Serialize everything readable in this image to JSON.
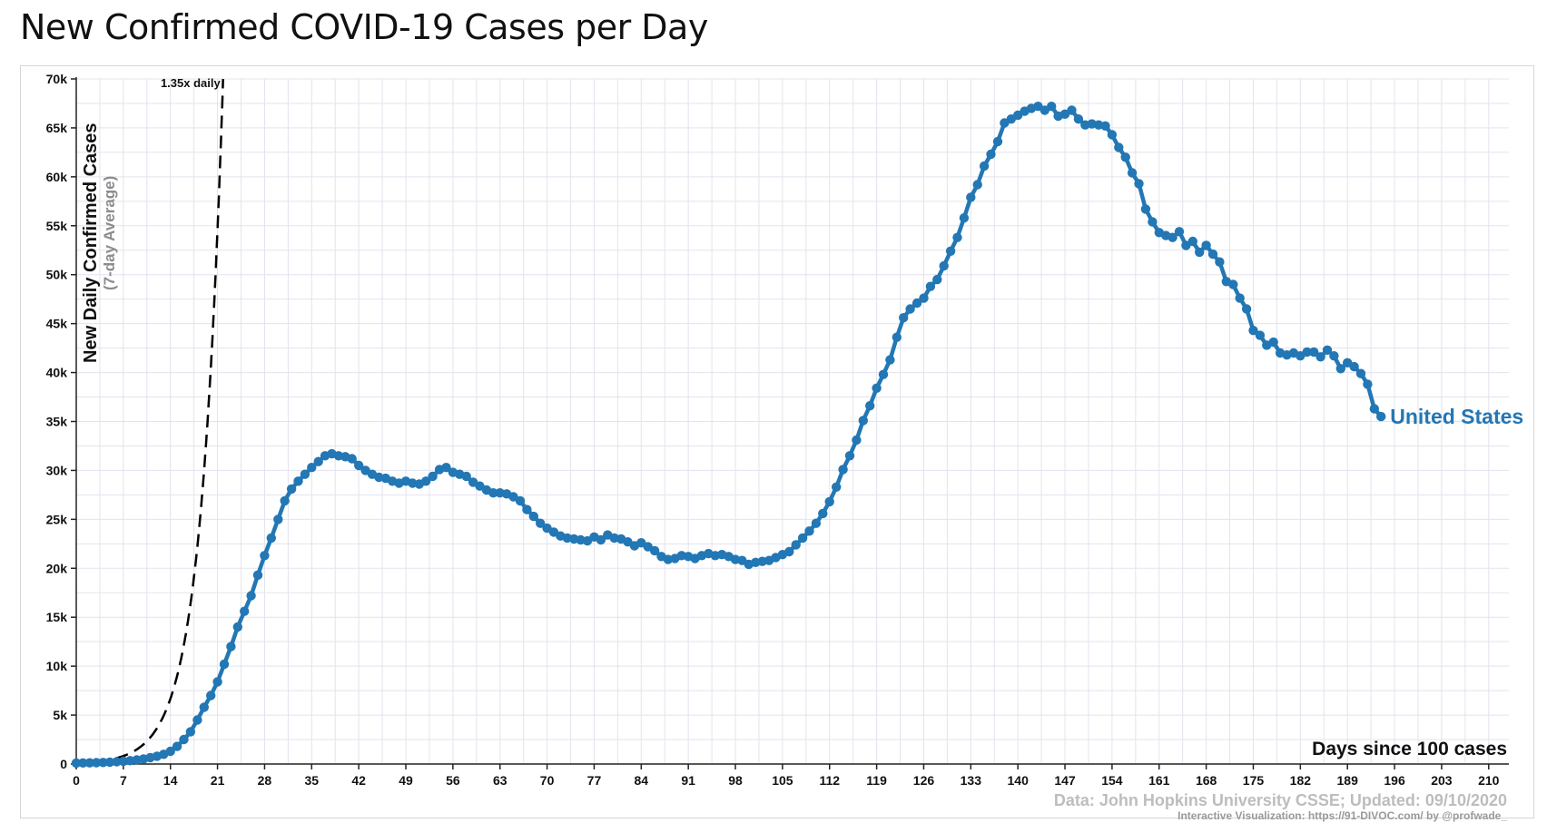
{
  "page": {
    "title": "New Confirmed COVID-19 Cases per Day"
  },
  "colors": {
    "series": "#2277b4",
    "grid": "#e3e3ee",
    "trend": "#000000",
    "credit": "#bdbdbd"
  },
  "chart_data": {
    "type": "line",
    "title": "New Confirmed COVID-19 Cases per Day",
    "xlabel": "Days since 100 cases",
    "ylabel": "New Daily Confirmed Cases",
    "ylabel_note": "(7-day Average)",
    "xlim": [
      0,
      213
    ],
    "ylim": [
      0,
      70000
    ],
    "x_ticks": [
      0,
      7,
      14,
      21,
      28,
      35,
      42,
      49,
      56,
      63,
      70,
      77,
      84,
      91,
      98,
      105,
      112,
      119,
      126,
      133,
      140,
      147,
      154,
      161,
      168,
      175,
      182,
      189,
      196,
      203,
      210
    ],
    "y_ticks": [
      {
        "value": 0,
        "label": "0"
      },
      {
        "value": 5000,
        "label": "5k"
      },
      {
        "value": 10000,
        "label": "10k"
      },
      {
        "value": 15000,
        "label": "15k"
      },
      {
        "value": 20000,
        "label": "20k"
      },
      {
        "value": 25000,
        "label": "25k"
      },
      {
        "value": 30000,
        "label": "30k"
      },
      {
        "value": 35000,
        "label": "35k"
      },
      {
        "value": 40000,
        "label": "40k"
      },
      {
        "value": 45000,
        "label": "45k"
      },
      {
        "value": 50000,
        "label": "50k"
      },
      {
        "value": 55000,
        "label": "55k"
      },
      {
        "value": 60000,
        "label": "60k"
      },
      {
        "value": 65000,
        "label": "65k"
      },
      {
        "value": 70000,
        "label": "70k"
      }
    ],
    "grid": true,
    "series": [
      {
        "name": "United States",
        "label_position": "end",
        "points": [
          [
            0,
            100
          ],
          [
            1,
            110
          ],
          [
            2,
            120
          ],
          [
            3,
            140
          ],
          [
            4,
            160
          ],
          [
            5,
            190
          ],
          [
            6,
            230
          ],
          [
            7,
            280
          ],
          [
            8,
            340
          ],
          [
            9,
            420
          ],
          [
            10,
            520
          ],
          [
            11,
            650
          ],
          [
            12,
            800
          ],
          [
            13,
            990
          ],
          [
            14,
            1300
          ],
          [
            15,
            1800
          ],
          [
            16,
            2500
          ],
          [
            17,
            3300
          ],
          [
            18,
            4500
          ],
          [
            19,
            5800
          ],
          [
            20,
            7000
          ],
          [
            21,
            8400
          ],
          [
            22,
            10200
          ],
          [
            23,
            12000
          ],
          [
            24,
            14000
          ],
          [
            25,
            15600
          ],
          [
            26,
            17200
          ],
          [
            27,
            19300
          ],
          [
            28,
            21300
          ],
          [
            29,
            23100
          ],
          [
            30,
            25000
          ],
          [
            31,
            26900
          ],
          [
            32,
            28100
          ],
          [
            33,
            28900
          ],
          [
            34,
            29600
          ],
          [
            35,
            30300
          ],
          [
            36,
            30900
          ],
          [
            37,
            31500
          ],
          [
            38,
            31700
          ],
          [
            39,
            31500
          ],
          [
            40,
            31400
          ],
          [
            41,
            31200
          ],
          [
            42,
            30500
          ],
          [
            43,
            30000
          ],
          [
            44,
            29600
          ],
          [
            45,
            29300
          ],
          [
            46,
            29200
          ],
          [
            47,
            28900
          ],
          [
            48,
            28700
          ],
          [
            49,
            28900
          ],
          [
            50,
            28700
          ],
          [
            51,
            28600
          ],
          [
            52,
            28900
          ],
          [
            53,
            29400
          ],
          [
            54,
            30100
          ],
          [
            55,
            30300
          ],
          [
            56,
            29800
          ],
          [
            57,
            29600
          ],
          [
            58,
            29400
          ],
          [
            59,
            28800
          ],
          [
            60,
            28400
          ],
          [
            61,
            28000
          ],
          [
            62,
            27700
          ],
          [
            63,
            27700
          ],
          [
            64,
            27600
          ],
          [
            65,
            27300
          ],
          [
            66,
            26900
          ],
          [
            67,
            26000
          ],
          [
            68,
            25300
          ],
          [
            69,
            24600
          ],
          [
            70,
            24100
          ],
          [
            71,
            23700
          ],
          [
            72,
            23300
          ],
          [
            73,
            23100
          ],
          [
            74,
            23000
          ],
          [
            75,
            22900
          ],
          [
            76,
            22800
          ],
          [
            77,
            23200
          ],
          [
            78,
            22900
          ],
          [
            79,
            23400
          ],
          [
            80,
            23100
          ],
          [
            81,
            23000
          ],
          [
            82,
            22700
          ],
          [
            83,
            22300
          ],
          [
            84,
            22600
          ],
          [
            85,
            22200
          ],
          [
            86,
            21800
          ],
          [
            87,
            21200
          ],
          [
            88,
            20900
          ],
          [
            89,
            21000
          ],
          [
            90,
            21300
          ],
          [
            91,
            21200
          ],
          [
            92,
            21000
          ],
          [
            93,
            21300
          ],
          [
            94,
            21500
          ],
          [
            95,
            21300
          ],
          [
            96,
            21400
          ],
          [
            97,
            21200
          ],
          [
            98,
            20900
          ],
          [
            99,
            20800
          ],
          [
            100,
            20400
          ],
          [
            101,
            20600
          ],
          [
            102,
            20700
          ],
          [
            103,
            20800
          ],
          [
            104,
            21100
          ],
          [
            105,
            21400
          ],
          [
            106,
            21700
          ],
          [
            107,
            22400
          ],
          [
            108,
            23100
          ],
          [
            109,
            23800
          ],
          [
            110,
            24600
          ],
          [
            111,
            25600
          ],
          [
            112,
            26800
          ],
          [
            113,
            28300
          ],
          [
            114,
            30100
          ],
          [
            115,
            31500
          ],
          [
            116,
            33100
          ],
          [
            117,
            35100
          ],
          [
            118,
            36600
          ],
          [
            119,
            38400
          ],
          [
            120,
            39800
          ],
          [
            121,
            41300
          ],
          [
            122,
            43600
          ],
          [
            123,
            45600
          ],
          [
            124,
            46500
          ],
          [
            125,
            47100
          ],
          [
            126,
            47600
          ],
          [
            127,
            48800
          ],
          [
            128,
            49500
          ],
          [
            129,
            50900
          ],
          [
            130,
            52400
          ],
          [
            131,
            53800
          ],
          [
            132,
            55800
          ],
          [
            133,
            57900
          ],
          [
            134,
            59200
          ],
          [
            135,
            61100
          ],
          [
            136,
            62300
          ],
          [
            137,
            63600
          ],
          [
            138,
            65500
          ],
          [
            139,
            65900
          ],
          [
            140,
            66300
          ],
          [
            141,
            66700
          ],
          [
            142,
            67000
          ],
          [
            143,
            67200
          ],
          [
            144,
            66800
          ],
          [
            145,
            67200
          ],
          [
            146,
            66200
          ],
          [
            147,
            66400
          ],
          [
            148,
            66800
          ],
          [
            149,
            65900
          ],
          [
            150,
            65300
          ],
          [
            151,
            65400
          ],
          [
            152,
            65300
          ],
          [
            153,
            65200
          ],
          [
            154,
            64300
          ],
          [
            155,
            63000
          ],
          [
            156,
            62000
          ],
          [
            157,
            60400
          ],
          [
            158,
            59300
          ],
          [
            159,
            56700
          ],
          [
            160,
            55400
          ],
          [
            161,
            54300
          ],
          [
            162,
            54000
          ],
          [
            163,
            53800
          ],
          [
            164,
            54400
          ],
          [
            165,
            53000
          ],
          [
            166,
            53400
          ],
          [
            167,
            52300
          ],
          [
            168,
            53000
          ],
          [
            169,
            52100
          ],
          [
            170,
            51300
          ],
          [
            171,
            49300
          ],
          [
            172,
            49000
          ],
          [
            173,
            47600
          ],
          [
            174,
            46500
          ],
          [
            175,
            44300
          ],
          [
            176,
            43800
          ],
          [
            177,
            42800
          ],
          [
            178,
            43100
          ],
          [
            179,
            42000
          ],
          [
            180,
            41800
          ],
          [
            181,
            42000
          ],
          [
            182,
            41700
          ],
          [
            183,
            42100
          ],
          [
            184,
            42100
          ],
          [
            185,
            41600
          ],
          [
            186,
            42300
          ],
          [
            187,
            41700
          ],
          [
            188,
            40400
          ],
          [
            189,
            41000
          ],
          [
            190,
            40600
          ],
          [
            191,
            39900
          ],
          [
            192,
            38800
          ],
          [
            193,
            36300
          ],
          [
            194,
            35500
          ]
        ]
      }
    ],
    "reference_line": {
      "label": "1.35x daily",
      "growth": 1.35,
      "start_x": 0,
      "start_y": 100,
      "style": "dashed"
    }
  },
  "credits": {
    "source": "Data: John Hopkins University CSSE; Updated: 09/10/2020",
    "visualization": "Interactive Visualization: https://91-DIVOC.com/ by @profwade_"
  }
}
